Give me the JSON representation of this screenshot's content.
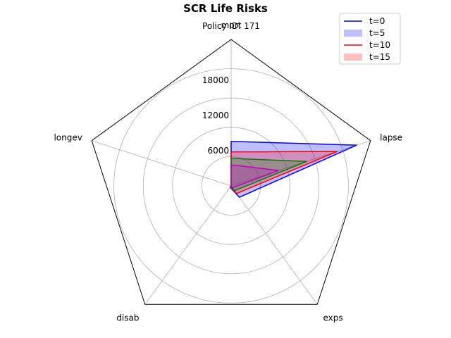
{
  "chart_data": {
    "type": "radar",
    "title": "SCR Life Risks",
    "subtitle": "Policy ID: 171",
    "axes": [
      "mort",
      "lapse",
      "exps",
      "disab",
      "longev"
    ],
    "rlim": [
      0,
      25000
    ],
    "r_ticks": [
      6000,
      12000,
      18000
    ],
    "r_tick_labels": [
      "6000",
      "12000",
      "18000"
    ],
    "grid": true,
    "legend_position": "top-right",
    "legend": [
      {
        "label": "t=0",
        "style": "line",
        "color": "#0000ff"
      },
      {
        "label": "t=5",
        "style": "patch",
        "color": "#0000ff"
      },
      {
        "label": "t=10",
        "style": "line",
        "color": "#ff0000"
      },
      {
        "label": "t=15",
        "style": "patch",
        "color": "#ff0000"
      }
    ],
    "series": [
      {
        "color": "#0000ff",
        "fill_opacity": 0.25,
        "values": [
          7600,
          22500,
          2400,
          300,
          0
        ]
      },
      {
        "color": "#ff0000",
        "fill_opacity": 0.25,
        "values": [
          5800,
          19000,
          1600,
          200,
          0
        ]
      },
      {
        "color": "#008000",
        "fill_opacity": 0.25,
        "values": [
          4700,
          13500,
          1000,
          150,
          0
        ]
      },
      {
        "color": "#c000c0",
        "fill_opacity": 0.25,
        "values": [
          3600,
          8500,
          400,
          50,
          0
        ]
      }
    ]
  }
}
